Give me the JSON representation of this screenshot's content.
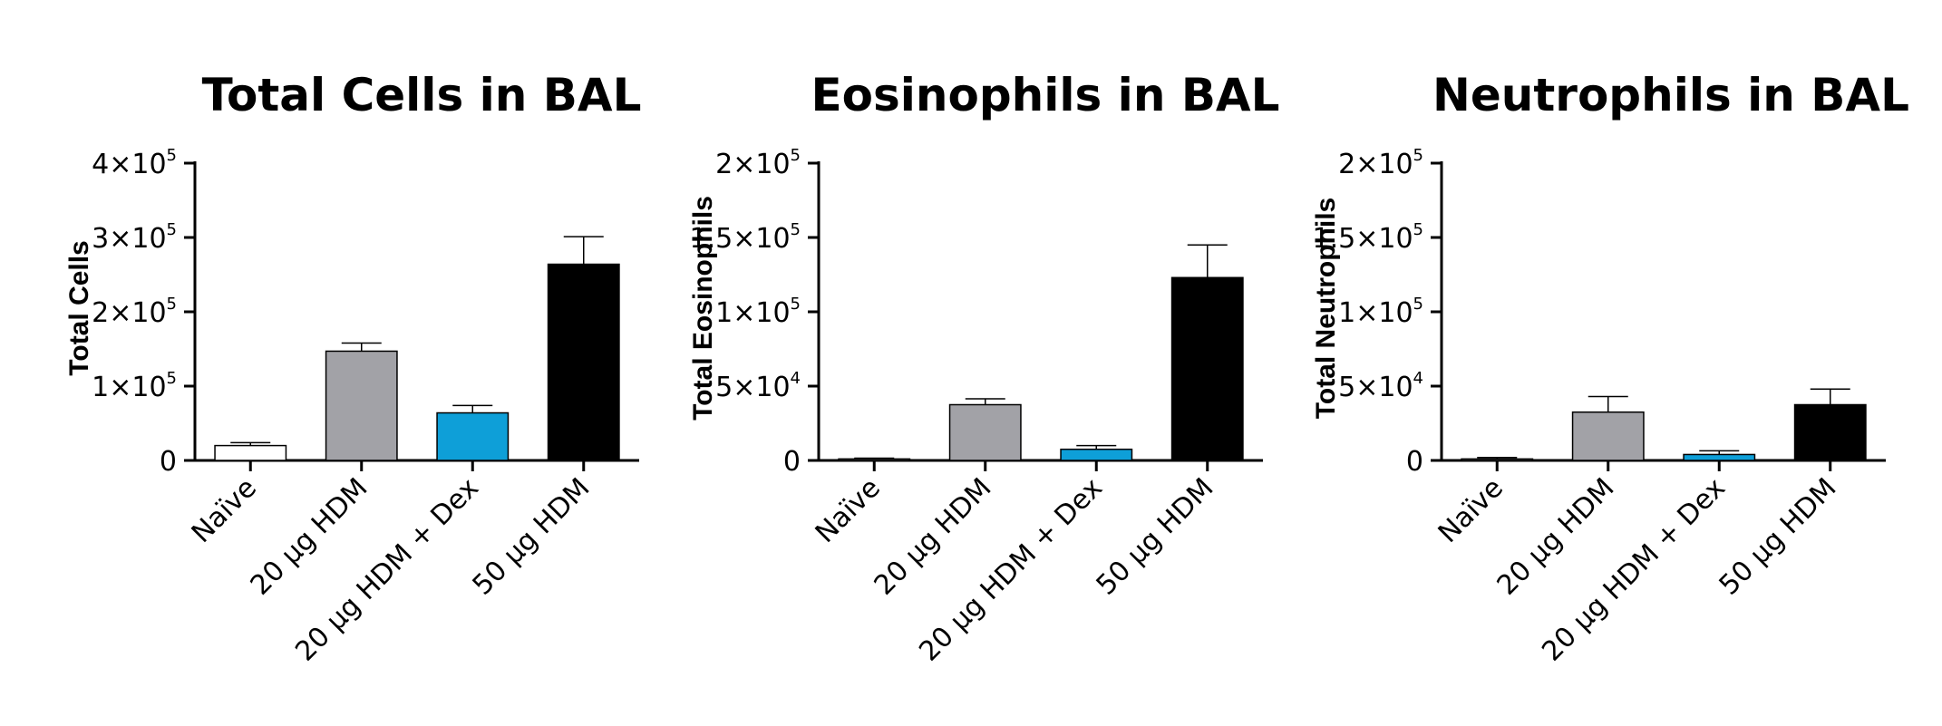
{
  "chart_data": [
    {
      "type": "bar",
      "title": "Total Cells in BAL",
      "ylabel": "Total Cells",
      "xlabel": "",
      "categories": [
        "Naïve",
        "20 µg HDM",
        "20 µg HDM + Dex",
        "50 µg HDM"
      ],
      "values": [
        20000,
        147000,
        64000,
        264000
      ],
      "errors": [
        4000,
        11000,
        10000,
        37000
      ],
      "colors": [
        "#ffffff",
        "#a2a2a7",
        "#0e9fd8",
        "#000000"
      ],
      "ylim": [
        0,
        400000
      ],
      "yticks": [
        {
          "value": 0,
          "mant": "0",
          "exp": ""
        },
        {
          "value": 100000,
          "mant": "1×10",
          "exp": "5"
        },
        {
          "value": 200000,
          "mant": "2×10",
          "exp": "5"
        },
        {
          "value": 300000,
          "mant": "3×10",
          "exp": "5"
        },
        {
          "value": 400000,
          "mant": "4×10",
          "exp": "5"
        }
      ]
    },
    {
      "type": "bar",
      "title": "Eosinophils in BAL",
      "ylabel": "Total Eosinophils",
      "xlabel": "",
      "categories": [
        "Naïve",
        "20 µg HDM",
        "20 µg HDM + Dex",
        "50 µg HDM"
      ],
      "values": [
        1000,
        37500,
        7500,
        123000
      ],
      "errors": [
        500,
        4000,
        2500,
        22000
      ],
      "colors": [
        "#ffffff",
        "#a2a2a7",
        "#0e9fd8",
        "#000000"
      ],
      "ylim": [
        0,
        200000
      ],
      "yticks": [
        {
          "value": 0,
          "mant": "0",
          "exp": ""
        },
        {
          "value": 50000,
          "mant": "5×10",
          "exp": "4"
        },
        {
          "value": 100000,
          "mant": "1×10",
          "exp": "5"
        },
        {
          "value": 150000,
          "mant": "1.5×10",
          "exp": "5"
        },
        {
          "value": 200000,
          "mant": "2×10",
          "exp": "5"
        }
      ]
    },
    {
      "type": "bar",
      "title": "Neutrophils in BAL",
      "ylabel": "Total Neutrophils",
      "xlabel": "",
      "categories": [
        "Naïve",
        "20 µg HDM",
        "20 µg HDM + Dex",
        "50 µg HDM"
      ],
      "values": [
        1000,
        32500,
        4000,
        37500
      ],
      "errors": [
        1000,
        10500,
        2500,
        10500
      ],
      "colors": [
        "#ffffff",
        "#a2a2a7",
        "#0e9fd8",
        "#000000"
      ],
      "ylim": [
        0,
        200000
      ],
      "yticks": [
        {
          "value": 0,
          "mant": "0",
          "exp": ""
        },
        {
          "value": 50000,
          "mant": "5×10",
          "exp": "4"
        },
        {
          "value": 100000,
          "mant": "1×10",
          "exp": "5"
        },
        {
          "value": 150000,
          "mant": "1.5×10",
          "exp": "5"
        },
        {
          "value": 200000,
          "mant": "2×10",
          "exp": "5"
        }
      ]
    }
  ]
}
